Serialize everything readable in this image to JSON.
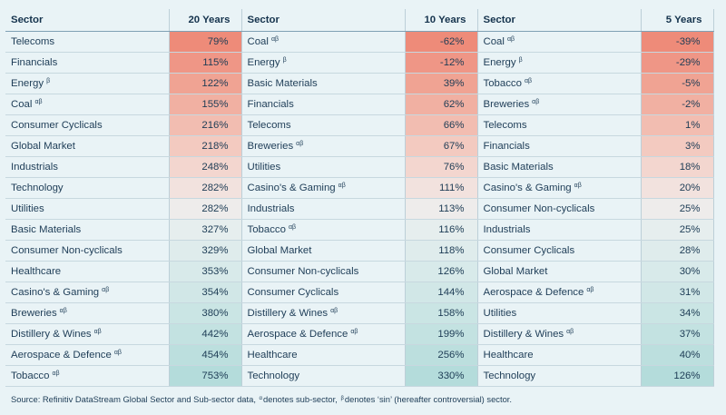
{
  "header": {
    "sector_label": "Sector",
    "col1_label": "20 Years",
    "col2_label": "10 Years",
    "col3_label": "5 Years"
  },
  "rows": [
    {
      "s1": "Telecoms",
      "sup1": "",
      "v1": "79%",
      "c1": "#ee8b79",
      "s2": "Coal",
      "sup2": "αβ",
      "v2": "-62%",
      "c2": "#ee8b79",
      "s3": "Coal",
      "sup3": "αβ",
      "v3": "-39%",
      "c3": "#ee8b79"
    },
    {
      "s1": "Financials",
      "sup1": "",
      "v1": "115%",
      "c1": "#ef9686",
      "s2": "Energy",
      "sup2": "β",
      "v2": "-12%",
      "c2": "#ef9686",
      "s3": "Energy",
      "sup3": "β",
      "v3": "-29%",
      "c3": "#ef9686"
    },
    {
      "s1": "Energy",
      "sup1": "β",
      "v1": "122%",
      "c1": "#f0a393",
      "s2": "Basic Materials",
      "sup2": "",
      "v2": "39%",
      "c2": "#f0a393",
      "s3": "Tobacco",
      "sup3": "αβ",
      "v3": "-5%",
      "c3": "#f0a393"
    },
    {
      "s1": "Coal",
      "sup1": "αβ",
      "v1": "155%",
      "c1": "#f1b0a2",
      "s2": "Financials",
      "sup2": "",
      "v2": "62%",
      "c2": "#f1b0a2",
      "s3": "Breweries",
      "sup3": "αβ",
      "v3": "-2%",
      "c3": "#f1b0a2"
    },
    {
      "s1": "Consumer Cyclicals",
      "sup1": "",
      "v1": "216%",
      "c1": "#f2bdb1",
      "s2": "Telecoms",
      "sup2": "",
      "v2": "66%",
      "c2": "#f2bdb1",
      "s3": "Telecoms",
      "sup3": "",
      "v3": "1%",
      "c3": "#f2bdb1"
    },
    {
      "s1": "Global Market",
      "sup1": "",
      "v1": "218%",
      "c1": "#f3cac0",
      "s2": "Breweries",
      "sup2": "αβ",
      "v2": "67%",
      "c2": "#f3cac0",
      "s3": "Financials",
      "sup3": "",
      "v3": "3%",
      "c3": "#f3cac0"
    },
    {
      "s1": "Industrials",
      "sup1": "",
      "v1": "248%",
      "c1": "#f3d6cf",
      "s2": "Utilities",
      "sup2": "",
      "v2": "76%",
      "c2": "#f3d6cf",
      "s3": "Basic Materials",
      "sup3": "",
      "v3": "18%",
      "c3": "#f3d6cf"
    },
    {
      "s1": "Technology",
      "sup1": "",
      "v1": "282%",
      "c1": "#f2e2de",
      "s2": "Casino's & Gaming",
      "sup2": "αβ",
      "v2": "111%",
      "c2": "#f2e2de",
      "s3": "Casino's & Gaming",
      "sup3": "αβ",
      "v3": "20%",
      "c3": "#f2e2de"
    },
    {
      "s1": "Utilities",
      "sup1": "",
      "v1": "282%",
      "c1": "#eeeceb",
      "s2": "Industrials",
      "sup2": "",
      "v2": "113%",
      "c2": "#eeeceb",
      "s3": "Consumer Non-cyclicals",
      "sup3": "",
      "v3": "25%",
      "c3": "#eeeceb"
    },
    {
      "s1": "Basic Materials",
      "sup1": "",
      "v1": "327%",
      "c1": "#e6eeee",
      "s2": "Tobacco",
      "sup2": "αβ",
      "v2": "116%",
      "c2": "#e6eeee",
      "s3": "Industrials",
      "sup3": "",
      "v3": "25%",
      "c3": "#e6eeee"
    },
    {
      "s1": "Consumer Non-cyclicals",
      "sup1": "",
      "v1": "329%",
      "c1": "#dfecec",
      "s2": "Global Market",
      "sup2": "",
      "v2": "118%",
      "c2": "#dfecec",
      "s3": "Consumer Cyclicals",
      "sup3": "",
      "v3": "28%",
      "c3": "#dfecec"
    },
    {
      "s1": "Healthcare",
      "sup1": "",
      "v1": "353%",
      "c1": "#d8eaea",
      "s2": "Consumer Non-cyclicals",
      "sup2": "",
      "v2": "126%",
      "c2": "#d8eaea",
      "s3": "Global Market",
      "sup3": "",
      "v3": "30%",
      "c3": "#d8eaea"
    },
    {
      "s1": "Casino's & Gaming",
      "sup1": "αβ",
      "v1": "354%",
      "c1": "#d1e7e7",
      "s2": "Consumer Cyclicals",
      "sup2": "",
      "v2": "144%",
      "c2": "#d1e7e7",
      "s3": "Aerospace & Defence",
      "sup3": "αβ",
      "v3": "31%",
      "c3": "#d1e7e7"
    },
    {
      "s1": "Breweries",
      "sup1": "αβ",
      "v1": "380%",
      "c1": "#cae5e4",
      "s2": "Distillery & Wines",
      "sup2": "αβ",
      "v2": "158%",
      "c2": "#cae5e4",
      "s3": "Utilities",
      "sup3": "",
      "v3": "34%",
      "c3": "#cae5e4"
    },
    {
      "s1": "Distillery & Wines",
      "sup1": "αβ",
      "v1": "442%",
      "c1": "#c3e2e1",
      "s2": "Aerospace & Defence",
      "sup2": "αβ",
      "v2": "199%",
      "c2": "#c3e2e1",
      "s3": "Distillery & Wines",
      "sup3": "αβ",
      "v3": "37%",
      "c3": "#c3e2e1"
    },
    {
      "s1": "Aerospace & Defence",
      "sup1": "αβ",
      "v1": "454%",
      "c1": "#bcdfde",
      "s2": "Healthcare",
      "sup2": "",
      "v2": "256%",
      "c2": "#bcdfde",
      "s3": "Healthcare",
      "sup3": "",
      "v3": "40%",
      "c3": "#bcdfde"
    },
    {
      "s1": "Tobacco",
      "sup1": "αβ",
      "v1": "753%",
      "c1": "#b4dcdb",
      "s2": "Technology",
      "sup2": "",
      "v2": "330%",
      "c2": "#b4dcdb",
      "s3": "Technology",
      "sup3": "",
      "v3": "126%",
      "c3": "#b4dcdb"
    }
  ],
  "source": {
    "prefix": "Source: Refinitiv DataStream Global Sector and Sub-sector data,",
    "alpha": "α",
    "mid": "denotes sub-sector,",
    "beta": "β",
    "suffix": "denotes ‘sin’ (hereafter controversial) sector."
  }
}
